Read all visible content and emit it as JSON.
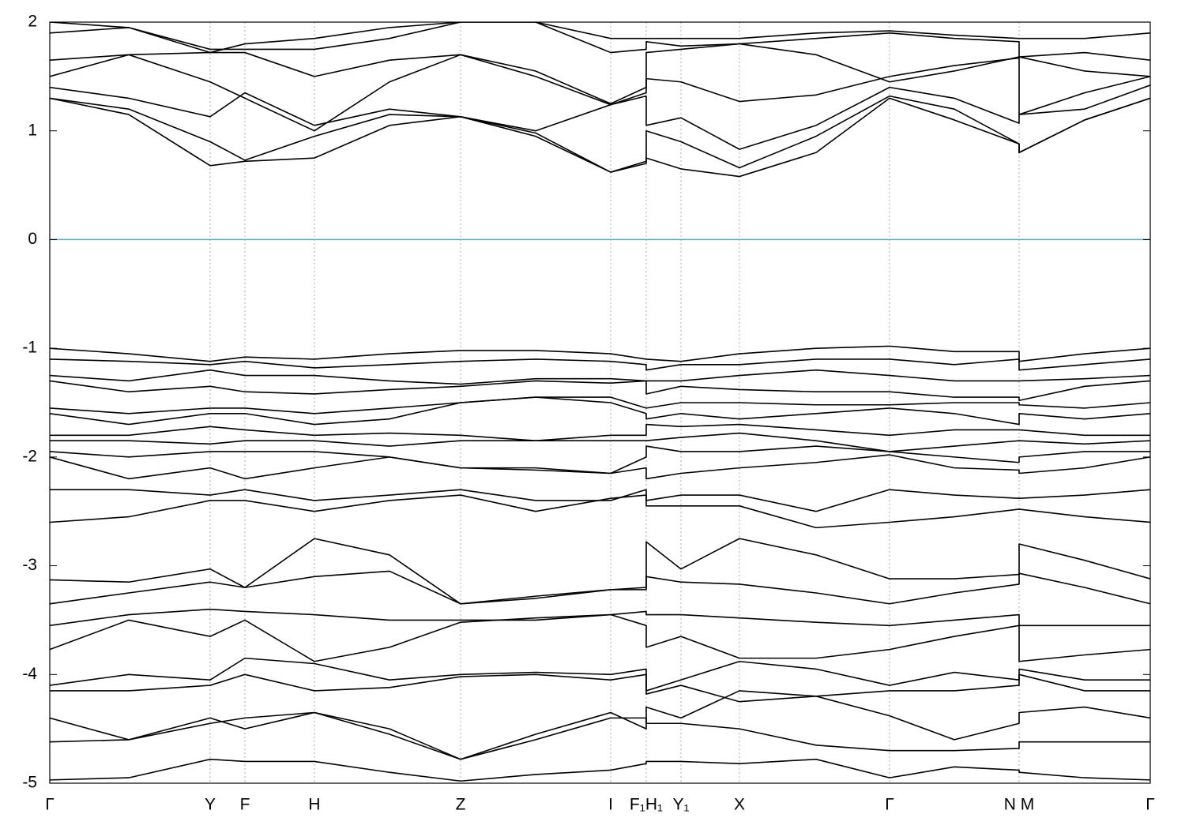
{
  "chart_data": {
    "type": "line",
    "color": "#000000",
    "hline": {
      "value": 0,
      "color": "#5aaec8"
    },
    "x": [
      0,
      100,
      203,
      247,
      335,
      430,
      520,
      615,
      710,
      755,
      755,
      799,
      873,
      970,
      1063,
      1145,
      1227,
      1227,
      1310,
      1393
    ],
    "xlim": [
      0,
      1393
    ],
    "xticks": [
      {
        "value": 0,
        "label": "Γ"
      },
      {
        "value": 203,
        "label": "Y"
      },
      {
        "value": 247,
        "label": "F"
      },
      {
        "value": 335,
        "label": "H"
      },
      {
        "value": 520,
        "label": "Z"
      },
      {
        "value": 710,
        "label": "I"
      },
      {
        "value": 755,
        "label": "F₁H₁"
      },
      {
        "value": 799,
        "label": "Y₁"
      },
      {
        "value": 873,
        "label": "X"
      },
      {
        "value": 1063,
        "label": "Γ"
      },
      {
        "value": 1227,
        "label": "N M"
      },
      {
        "value": 1393,
        "label": "Γ"
      }
    ],
    "ylim": [
      -5,
      2
    ],
    "yticks": [
      -5,
      -4,
      -3,
      -2,
      -1,
      0,
      1,
      2
    ],
    "series": [
      {
        "values": [
          1.3,
          1.15,
          0.68,
          0.72,
          0.75,
          1.05,
          1.13,
          0.95,
          0.62,
          0.72,
          0.75,
          0.65,
          0.58,
          0.8,
          1.3,
          1.1,
          0.88,
          0.8,
          1.1,
          1.3
        ]
      },
      {
        "values": [
          1.3,
          1.2,
          0.9,
          0.73,
          0.95,
          1.15,
          1.13,
          0.98,
          0.62,
          0.7,
          1.0,
          0.9,
          0.66,
          0.95,
          1.32,
          1.2,
          0.88,
          0.8,
          1.1,
          1.3
        ]
      },
      {
        "values": [
          1.4,
          1.3,
          1.13,
          1.35,
          1.05,
          1.2,
          1.13,
          1.0,
          1.24,
          1.32,
          1.05,
          1.12,
          0.83,
          1.05,
          1.4,
          1.3,
          1.07,
          1.15,
          1.2,
          1.42
        ]
      },
      {
        "values": [
          1.5,
          1.7,
          1.45,
          1.3,
          1.0,
          1.45,
          1.7,
          1.5,
          1.24,
          1.35,
          1.48,
          1.45,
          1.27,
          1.33,
          1.5,
          1.6,
          1.67,
          1.15,
          1.35,
          1.5
        ]
      },
      {
        "values": [
          1.65,
          1.7,
          1.72,
          1.72,
          1.5,
          1.65,
          1.7,
          1.55,
          1.25,
          1.4,
          1.72,
          1.75,
          1.8,
          1.7,
          1.45,
          1.55,
          1.68,
          1.68,
          1.55,
          1.5
        ]
      },
      {
        "values": [
          1.9,
          1.95,
          1.75,
          1.75,
          1.75,
          1.85,
          2.0,
          2.0,
          1.72,
          1.75,
          1.82,
          1.78,
          1.8,
          1.85,
          1.9,
          1.85,
          1.82,
          1.68,
          1.72,
          1.65
        ]
      },
      {
        "values": [
          2.0,
          1.95,
          1.72,
          1.8,
          1.85,
          1.95,
          2.0,
          2.0,
          1.85,
          1.85,
          1.85,
          1.85,
          1.85,
          1.9,
          1.92,
          1.88,
          1.85,
          1.85,
          1.85,
          1.9
        ]
      },
      {
        "values": [
          -1.0,
          -1.05,
          -1.12,
          -1.08,
          -1.1,
          -1.05,
          -1.02,
          -1.02,
          -1.05,
          -1.1,
          -1.1,
          -1.12,
          -1.05,
          -1.0,
          -0.98,
          -1.03,
          -1.03,
          -1.12,
          -1.05,
          -1.0
        ]
      },
      {
        "values": [
          -1.1,
          -1.12,
          -1.15,
          -1.12,
          -1.18,
          -1.15,
          -1.12,
          -1.1,
          -1.12,
          -1.15,
          -1.2,
          -1.15,
          -1.15,
          -1.1,
          -1.1,
          -1.15,
          -1.1,
          -1.2,
          -1.15,
          -1.1
        ]
      },
      {
        "values": [
          -1.25,
          -1.3,
          -1.2,
          -1.25,
          -1.25,
          -1.3,
          -1.33,
          -1.28,
          -1.28,
          -1.3,
          -1.3,
          -1.3,
          -1.25,
          -1.2,
          -1.25,
          -1.3,
          -1.3,
          -1.3,
          -1.28,
          -1.25
        ]
      },
      {
        "values": [
          -1.3,
          -1.4,
          -1.35,
          -1.4,
          -1.42,
          -1.38,
          -1.35,
          -1.3,
          -1.32,
          -1.3,
          -1.42,
          -1.35,
          -1.38,
          -1.4,
          -1.4,
          -1.45,
          -1.45,
          -1.48,
          -1.35,
          -1.3
        ]
      },
      {
        "values": [
          -1.55,
          -1.6,
          -1.55,
          -1.55,
          -1.6,
          -1.55,
          -1.5,
          -1.45,
          -1.45,
          -1.55,
          -1.55,
          -1.5,
          -1.5,
          -1.52,
          -1.52,
          -1.5,
          -1.5,
          -1.52,
          -1.55,
          -1.5
        ]
      },
      {
        "values": [
          -1.6,
          -1.7,
          -1.6,
          -1.6,
          -1.7,
          -1.65,
          -1.5,
          -1.45,
          -1.5,
          -1.6,
          -1.65,
          -1.6,
          -1.65,
          -1.6,
          -1.55,
          -1.6,
          -1.7,
          -1.6,
          -1.65,
          -1.6
        ]
      },
      {
        "values": [
          -1.8,
          -1.8,
          -1.72,
          -1.75,
          -1.8,
          -1.78,
          -1.8,
          -1.85,
          -1.8,
          -1.8,
          -1.7,
          -1.72,
          -1.7,
          -1.75,
          -1.8,
          -1.75,
          -1.75,
          -1.75,
          -1.8,
          -1.8
        ]
      },
      {
        "values": [
          -1.85,
          -1.85,
          -1.88,
          -1.85,
          -1.85,
          -1.9,
          -1.85,
          -1.85,
          -1.85,
          -1.85,
          -1.85,
          -1.82,
          -1.78,
          -1.85,
          -1.95,
          -1.9,
          -1.85,
          -1.85,
          -1.88,
          -1.85
        ]
      },
      {
        "values": [
          -1.95,
          -2.0,
          -1.95,
          -1.95,
          -1.95,
          -2.0,
          -2.1,
          -2.1,
          -2.15,
          -2.0,
          -1.9,
          -1.95,
          -1.95,
          -1.9,
          -1.95,
          -2.0,
          -2.05,
          -2.0,
          -1.95,
          -1.95
        ]
      },
      {
        "values": [
          -2.0,
          -2.2,
          -2.1,
          -2.2,
          -2.1,
          -2.0,
          -2.1,
          -2.12,
          -2.15,
          -2.1,
          -2.2,
          -2.15,
          -2.1,
          -2.05,
          -1.98,
          -2.1,
          -2.12,
          -2.15,
          -2.1,
          -2.0
        ]
      },
      {
        "values": [
          -2.3,
          -2.3,
          -2.35,
          -2.3,
          -2.4,
          -2.35,
          -2.3,
          -2.4,
          -2.4,
          -2.3,
          -2.4,
          -2.35,
          -2.35,
          -2.5,
          -2.3,
          -2.35,
          -2.38,
          -2.38,
          -2.35,
          -2.3
        ]
      },
      {
        "values": [
          -2.6,
          -2.55,
          -2.4,
          -2.4,
          -2.5,
          -2.4,
          -2.35,
          -2.5,
          -2.38,
          -2.35,
          -2.45,
          -2.45,
          -2.45,
          -2.65,
          -2.6,
          -2.55,
          -2.48,
          -2.48,
          -2.55,
          -2.6
        ]
      },
      {
        "values": [
          -3.13,
          -3.15,
          -3.03,
          -3.2,
          -2.75,
          -2.9,
          -3.35,
          -3.3,
          -3.22,
          -3.2,
          -2.78,
          -3.03,
          -2.75,
          -2.9,
          -3.12,
          -3.12,
          -3.08,
          -2.8,
          -2.95,
          -3.12
        ]
      },
      {
        "values": [
          -3.35,
          -3.25,
          -3.15,
          -3.2,
          -3.1,
          -3.05,
          -3.35,
          -3.28,
          -3.22,
          -3.22,
          -3.1,
          -3.15,
          -3.17,
          -3.25,
          -3.35,
          -3.25,
          -3.17,
          -3.07,
          -3.2,
          -3.35
        ]
      },
      {
        "values": [
          -3.55,
          -3.45,
          -3.4,
          -3.42,
          -3.45,
          -3.5,
          -3.5,
          -3.5,
          -3.45,
          -3.42,
          -3.45,
          -3.45,
          -3.48,
          -3.52,
          -3.55,
          -3.5,
          -3.45,
          -3.55,
          -3.55,
          -3.55
        ]
      },
      {
        "values": [
          -3.77,
          -3.5,
          -3.65,
          -3.5,
          -3.88,
          -3.75,
          -3.52,
          -3.48,
          -3.45,
          -3.55,
          -3.75,
          -3.65,
          -3.85,
          -3.85,
          -3.77,
          -3.65,
          -3.55,
          -3.88,
          -3.82,
          -3.77
        ]
      },
      {
        "values": [
          -4.1,
          -4.0,
          -4.05,
          -3.85,
          -3.9,
          -4.05,
          -4.0,
          -3.98,
          -4.0,
          -3.95,
          -4.15,
          -4.05,
          -3.88,
          -3.95,
          -4.1,
          -3.98,
          -4.05,
          -3.95,
          -4.05,
          -4.05
        ]
      },
      {
        "values": [
          -4.15,
          -4.15,
          -4.1,
          -4.0,
          -4.15,
          -4.12,
          -4.02,
          -4.0,
          -4.05,
          -4.0,
          -4.18,
          -4.1,
          -4.25,
          -4.2,
          -4.15,
          -4.15,
          -4.1,
          -4.0,
          -4.15,
          -4.15
        ]
      },
      {
        "values": [
          -4.4,
          -4.6,
          -4.4,
          -4.5,
          -4.35,
          -4.5,
          -4.78,
          -4.55,
          -4.35,
          -4.5,
          -4.3,
          -4.4,
          -4.15,
          -4.2,
          -4.38,
          -4.6,
          -4.45,
          -4.35,
          -4.3,
          -4.4
        ]
      },
      {
        "values": [
          -4.62,
          -4.6,
          -4.45,
          -4.4,
          -4.35,
          -4.55,
          -4.78,
          -4.6,
          -4.4,
          -4.4,
          -4.45,
          -4.45,
          -4.5,
          -4.65,
          -4.7,
          -4.7,
          -4.68,
          -4.62,
          -4.62,
          -4.62
        ]
      },
      {
        "values": [
          -4.97,
          -4.95,
          -4.78,
          -4.8,
          -4.8,
          -4.9,
          -4.98,
          -4.92,
          -4.88,
          -4.82,
          -4.8,
          -4.8,
          -4.82,
          -4.78,
          -4.95,
          -4.85,
          -4.88,
          -4.9,
          -4.95,
          -4.97
        ]
      }
    ]
  }
}
